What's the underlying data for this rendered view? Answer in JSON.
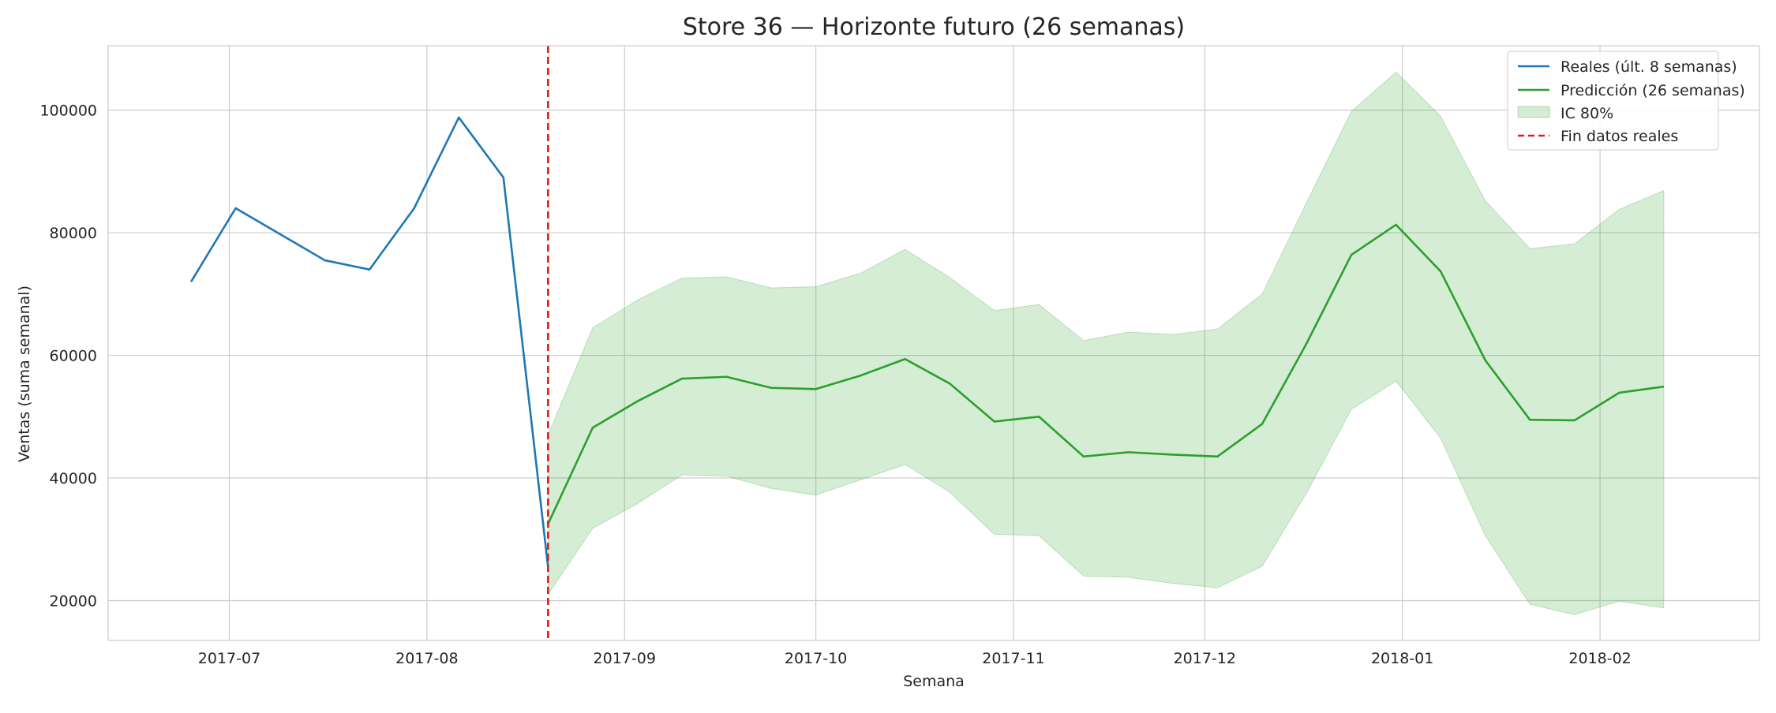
{
  "chart_data": {
    "type": "line",
    "title": "Store 36 — Horizonte futuro (26 semanas)",
    "xlabel": "Semana",
    "ylabel": "Ventas (suma semanal)",
    "xlim": [
      "2017-06-12",
      "2018-02-26"
    ],
    "ylim": [
      13500,
      110500
    ],
    "yticks": [
      20000,
      40000,
      60000,
      80000,
      100000
    ],
    "xticks": [
      {
        "date": "2017-07-01",
        "label": "2017-07"
      },
      {
        "date": "2017-08-01",
        "label": "2017-08"
      },
      {
        "date": "2017-09-01",
        "label": "2017-09"
      },
      {
        "date": "2017-10-01",
        "label": "2017-10"
      },
      {
        "date": "2017-11-01",
        "label": "2017-11"
      },
      {
        "date": "2017-12-01",
        "label": "2017-12"
      },
      {
        "date": "2018-01-01",
        "label": "2018-01"
      },
      {
        "date": "2018-02-01",
        "label": "2018-02"
      }
    ],
    "grid": true,
    "legend_position": "top-right",
    "vline": {
      "x": "2017-08-20",
      "name": "Fin datos reales",
      "color": "#e31a1c",
      "style": "dashed"
    },
    "actual": {
      "name": "Reales (últ. 8 semanas)",
      "color": "#1f77b4",
      "x": [
        "2017-06-25",
        "2017-07-02",
        "2017-07-16",
        "2017-07-23",
        "2017-07-30",
        "2017-08-06",
        "2017-08-13",
        "2017-08-20"
      ],
      "y": [
        72000,
        84000,
        75500,
        74000,
        84000,
        98800,
        89000,
        25500
      ]
    },
    "forecast": {
      "name": "Predicción (26 semanas)",
      "color": "#2ca02c",
      "x": [
        "2017-08-20",
        "2017-08-27",
        "2017-09-03",
        "2017-09-10",
        "2017-09-17",
        "2017-09-24",
        "2017-10-01",
        "2017-10-08",
        "2017-10-15",
        "2017-10-22",
        "2017-10-29",
        "2017-11-05",
        "2017-11-12",
        "2017-11-19",
        "2017-11-26",
        "2017-12-03",
        "2017-12-10",
        "2017-12-17",
        "2017-12-24",
        "2017-12-31",
        "2018-01-07",
        "2018-01-14",
        "2018-01-21",
        "2018-01-28",
        "2018-02-04",
        "2018-02-11"
      ],
      "y": [
        32500,
        48200,
        52500,
        56200,
        56500,
        54700,
        54500,
        56700,
        59400,
        55400,
        49200,
        50000,
        43500,
        44200,
        43800,
        43500,
        48800,
        62000,
        76400,
        81300,
        73700,
        59200,
        49500,
        49400,
        53900,
        54900
      ]
    },
    "interval": {
      "name": "IC 80%",
      "color": "#2ca02c",
      "opacity": 0.2,
      "lower": [
        21000,
        31800,
        35800,
        40500,
        40300,
        38300,
        37200,
        39700,
        42200,
        37700,
        30800,
        30600,
        24000,
        23800,
        22800,
        22100,
        25600,
        37600,
        51200,
        55800,
        46500,
        30600,
        19400,
        17700,
        19900,
        18800
      ],
      "upper": [
        47000,
        64500,
        69000,
        72600,
        72800,
        71000,
        71200,
        73400,
        77300,
        72700,
        67300,
        68300,
        62400,
        63800,
        63400,
        64300,
        70000,
        85000,
        99800,
        106200,
        99000,
        85200,
        77400,
        78200,
        83800,
        86900
      ]
    }
  }
}
